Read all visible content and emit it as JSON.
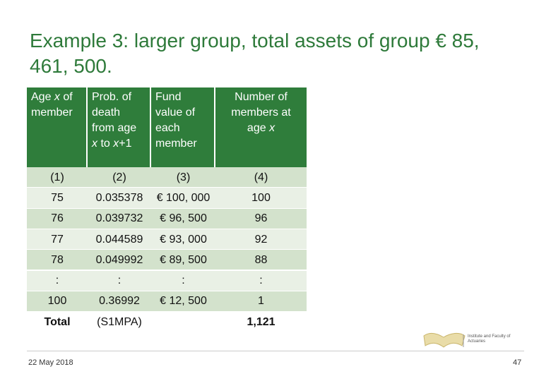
{
  "title": "Example 3: larger group, total assets of group € 85, 461, 500.",
  "table": {
    "header": [
      [
        [
          {
            "text": "Age ",
            "italic": false
          },
          {
            "text": "x",
            "italic": true
          },
          {
            "text": " of",
            "italic": false
          }
        ],
        [
          {
            "text": "member",
            "italic": false
          }
        ]
      ],
      [
        [
          {
            "text": "Prob. of",
            "italic": false
          }
        ],
        [
          {
            "text": "death",
            "italic": false
          }
        ],
        [
          {
            "text": "from age",
            "italic": false
          }
        ],
        [
          {
            "text": "x",
            "italic": true
          },
          {
            "text": " to ",
            "italic": false
          },
          {
            "text": "x",
            "italic": true
          },
          {
            "text": "+1",
            "italic": false
          }
        ]
      ],
      [
        [
          {
            "text": "Fund",
            "italic": false
          }
        ],
        [
          {
            "text": "value of",
            "italic": false
          }
        ],
        [
          {
            "text": "each",
            "italic": false
          }
        ],
        [
          {
            "text": "member",
            "italic": false
          }
        ]
      ],
      [
        [
          {
            "text": "Number of",
            "italic": false
          }
        ],
        [
          {
            "text": "members at",
            "italic": false
          }
        ],
        [
          {
            "text": "age ",
            "italic": false
          },
          {
            "text": "x",
            "italic": true
          }
        ]
      ]
    ],
    "rows": [
      [
        "(1)",
        "(2)",
        "(3)",
        "(4)"
      ],
      [
        "75",
        "0.035378",
        "€ 100, 000",
        "100"
      ],
      [
        "76",
        "0.039732",
        "€ 96, 500",
        "96"
      ],
      [
        "77",
        "0.044589",
        "€ 93, 000",
        "92"
      ],
      [
        "78",
        "0.049992",
        "€ 89, 500",
        "88"
      ],
      [
        ":",
        ":",
        ":",
        ":"
      ],
      [
        "100",
        "0.36992",
        "€ 12, 500",
        "1"
      ],
      [
        "Total",
        "(S1MPA)",
        "",
        "1,121"
      ]
    ]
  },
  "footer": {
    "date": "22 May 2018",
    "page": "47",
    "logo": "Institute and Faculty of Actuaries"
  }
}
